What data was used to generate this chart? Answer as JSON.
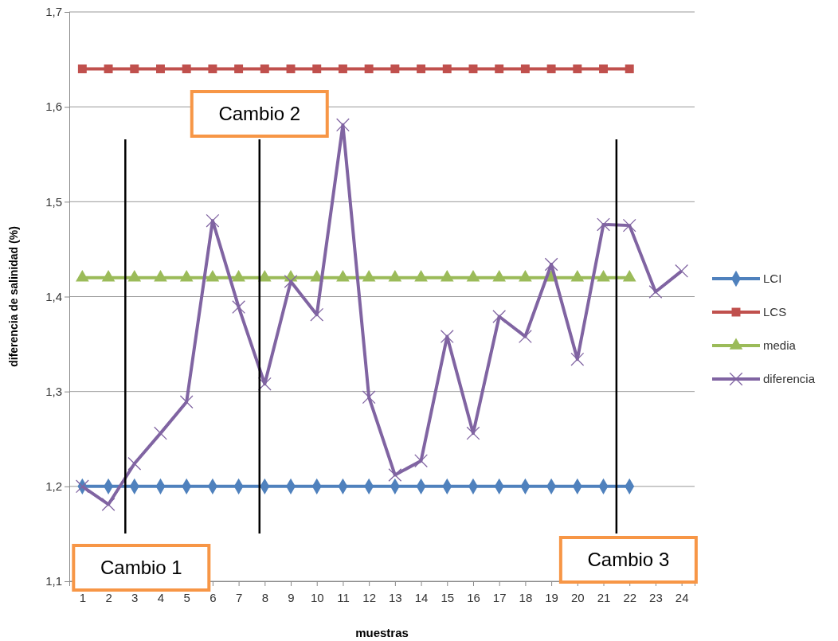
{
  "chart_data": {
    "type": "line",
    "xlabel": "muestras",
    "ylabel": "diferencia de salinidad  (%)",
    "x": [
      1,
      2,
      3,
      4,
      5,
      6,
      7,
      8,
      9,
      10,
      11,
      12,
      13,
      14,
      15,
      16,
      17,
      18,
      19,
      20,
      21,
      22,
      23,
      24
    ],
    "xlim": [
      0.5,
      24.5
    ],
    "xticks": [
      1,
      2,
      3,
      4,
      5,
      6,
      7,
      8,
      9,
      10,
      11,
      12,
      13,
      14,
      15,
      16,
      17,
      18,
      19,
      20,
      21,
      22,
      23,
      24
    ],
    "ylim": [
      1.1,
      1.7
    ],
    "yticks": [
      {
        "value": 1.1,
        "label": "1,1"
      },
      {
        "value": 1.2,
        "label": "1,2"
      },
      {
        "value": 1.3,
        "label": "1,3"
      },
      {
        "value": 1.4,
        "label": "1,4"
      },
      {
        "value": 1.5,
        "label": "1,5"
      },
      {
        "value": 1.6,
        "label": "1,6"
      },
      {
        "value": 1.7,
        "label": "1,7"
      }
    ],
    "grid": "y",
    "legend": "right",
    "series": [
      {
        "name": "LCI",
        "color": "#4f81bd",
        "marker": "diamond",
        "values": [
          1.2,
          1.2,
          1.2,
          1.2,
          1.2,
          1.2,
          1.2,
          1.2,
          1.2,
          1.2,
          1.2,
          1.2,
          1.2,
          1.2,
          1.2,
          1.2,
          1.2,
          1.2,
          1.2,
          1.2,
          1.2,
          1.2,
          null,
          null
        ]
      },
      {
        "name": "LCS",
        "color": "#c0504d",
        "marker": "square",
        "values": [
          1.64,
          1.64,
          1.64,
          1.64,
          1.64,
          1.64,
          1.64,
          1.64,
          1.64,
          1.64,
          1.64,
          1.64,
          1.64,
          1.64,
          1.64,
          1.64,
          1.64,
          1.64,
          1.64,
          1.64,
          1.64,
          1.64,
          null,
          null
        ]
      },
      {
        "name": "media",
        "color": "#9bbb59",
        "marker": "triangle",
        "values": [
          1.42,
          1.42,
          1.42,
          1.42,
          1.42,
          1.42,
          1.42,
          1.42,
          1.42,
          1.42,
          1.42,
          1.42,
          1.42,
          1.42,
          1.42,
          1.42,
          1.42,
          1.42,
          1.42,
          1.42,
          1.42,
          1.42,
          null,
          null
        ]
      },
      {
        "name": "diferencia",
        "color": "#8064a2",
        "marker": "cross",
        "values": [
          1.2,
          1.181,
          1.224,
          1.256,
          1.289,
          1.48,
          1.389,
          1.308,
          1.416,
          1.381,
          1.581,
          1.294,
          1.212,
          1.227,
          1.358,
          1.256,
          1.379,
          1.358,
          1.434,
          1.334,
          1.476,
          1.475,
          1.405,
          1.427
        ]
      }
    ],
    "ref_lines": [
      {
        "axis": "x",
        "value": 2.65,
        "label": "Cambio 1",
        "color": "#000000"
      },
      {
        "axis": "x",
        "value": 7.8,
        "label": "Cambio 2",
        "color": "#000000"
      },
      {
        "axis": "x",
        "value": 21.5,
        "label": "Cambio 3",
        "color": "#000000"
      }
    ]
  }
}
